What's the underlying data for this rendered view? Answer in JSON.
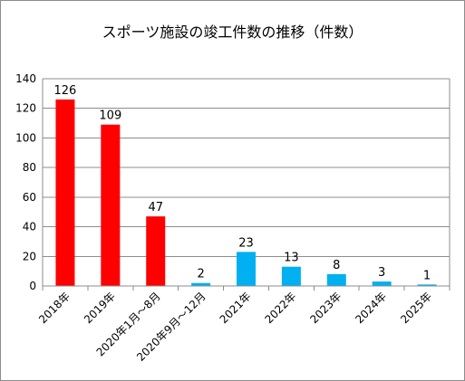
{
  "chart_data": {
    "type": "bar",
    "title": "スポーツ施設の竣工件数の推移（件数）",
    "xlabel": "",
    "ylabel": "",
    "ylim": [
      0,
      140
    ],
    "yticks": [
      0,
      20,
      40,
      60,
      80,
      100,
      120,
      140
    ],
    "grid": true,
    "legend": "none",
    "categories": [
      "2018年",
      "2019年",
      "2020年1月～8月",
      "2020年9月～12月",
      "2021年",
      "2022年",
      "2023年",
      "2024年",
      "2025年"
    ],
    "values": [
      126,
      109,
      47,
      2,
      23,
      13,
      8,
      3,
      1
    ],
    "colors": [
      "#ff0000",
      "#ff0000",
      "#ff0000",
      "#00b0f0",
      "#00b0f0",
      "#00b0f0",
      "#00b0f0",
      "#00b0f0",
      "#00b0f0"
    ],
    "data_labels": [
      "126",
      "109",
      "47",
      "2",
      "23",
      "13",
      "8",
      "3",
      "1"
    ]
  }
}
